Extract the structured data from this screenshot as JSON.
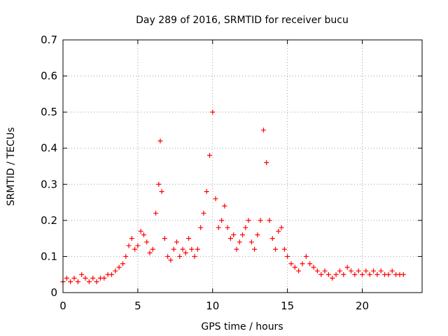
{
  "chart_data": {
    "type": "scatter",
    "title": "Day 289 of 2016, SRMTID for receiver bucu",
    "xlabel": "GPS time / hours",
    "ylabel": "SRMTID / TECUs",
    "xlim": [
      0,
      24
    ],
    "ylim": [
      0,
      0.7
    ],
    "xticks": [
      0,
      5,
      10,
      15,
      20
    ],
    "xtick_labels": [
      "0",
      "5",
      "10",
      "15",
      "20"
    ],
    "yticks": [
      0,
      0.1,
      0.2,
      0.3,
      0.4,
      0.5,
      0.6,
      0.7
    ],
    "ytick_labels": [
      "0",
      "0.1",
      "0.2",
      "0.3",
      "0.4",
      "0.5",
      "0.6",
      "0.7"
    ],
    "grid": true,
    "marker": "+",
    "color": "#ff0000",
    "series": [
      {
        "x": [
          0.0,
          0.25,
          0.5,
          0.75,
          1.0,
          1.25,
          1.5,
          1.75,
          2.0,
          2.25,
          2.5,
          2.75,
          3.0,
          3.25,
          3.5,
          3.75,
          4.0,
          4.2,
          4.4,
          4.6,
          4.8,
          5.0,
          5.2,
          5.4,
          5.6,
          5.8,
          6.0,
          6.2,
          6.4,
          6.5,
          6.6,
          6.8,
          7.0,
          7.2,
          7.4,
          7.6,
          7.8,
          8.0,
          8.2,
          8.4,
          8.6,
          8.8,
          9.0,
          9.2,
          9.4,
          9.6,
          9.8,
          10.0,
          10.2,
          10.4,
          10.6,
          10.8,
          11.0,
          11.2,
          11.4,
          11.6,
          11.8,
          12.0,
          12.2,
          12.4,
          12.6,
          12.8,
          13.0,
          13.2,
          13.4,
          13.6,
          13.8,
          14.0,
          14.2,
          14.4,
          14.6,
          14.8,
          15.0,
          15.25,
          15.5,
          15.75,
          16.0,
          16.25,
          16.5,
          16.75,
          17.0,
          17.25,
          17.5,
          17.75,
          18.0,
          18.25,
          18.5,
          18.75,
          19.0,
          19.25,
          19.5,
          19.75,
          20.0,
          20.25,
          20.5,
          20.75,
          21.0,
          21.25,
          21.5,
          21.75,
          22.0,
          22.25,
          22.5,
          22.75
        ],
        "y": [
          0.03,
          0.04,
          0.03,
          0.04,
          0.03,
          0.05,
          0.04,
          0.03,
          0.04,
          0.03,
          0.04,
          0.04,
          0.05,
          0.05,
          0.06,
          0.07,
          0.08,
          0.1,
          0.13,
          0.15,
          0.12,
          0.13,
          0.17,
          0.16,
          0.14,
          0.11,
          0.12,
          0.22,
          0.3,
          0.42,
          0.28,
          0.15,
          0.1,
          0.09,
          0.12,
          0.14,
          0.1,
          0.12,
          0.11,
          0.15,
          0.12,
          0.1,
          0.12,
          0.18,
          0.22,
          0.28,
          0.38,
          0.5,
          0.26,
          0.18,
          0.2,
          0.24,
          0.18,
          0.15,
          0.16,
          0.12,
          0.14,
          0.16,
          0.18,
          0.2,
          0.14,
          0.12,
          0.16,
          0.2,
          0.45,
          0.36,
          0.2,
          0.15,
          0.12,
          0.17,
          0.18,
          0.12,
          0.1,
          0.08,
          0.07,
          0.06,
          0.08,
          0.1,
          0.08,
          0.07,
          0.06,
          0.05,
          0.06,
          0.05,
          0.04,
          0.05,
          0.06,
          0.05,
          0.07,
          0.06,
          0.05,
          0.06,
          0.05,
          0.06,
          0.05,
          0.06,
          0.05,
          0.06,
          0.05,
          0.05,
          0.06,
          0.05,
          0.05,
          0.05
        ]
      }
    ]
  }
}
